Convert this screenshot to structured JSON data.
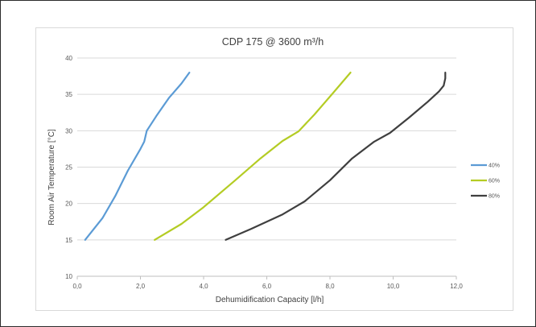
{
  "chart_data": {
    "type": "line",
    "title": "CDP 175 @ 3600 m³/h",
    "xlabel": "Dehumidification Capacity [l/h]",
    "ylabel": "Room Air Temperature [°C]",
    "xlim": [
      0,
      12
    ],
    "ylim": [
      10,
      40
    ],
    "x_ticks": [
      "0,0",
      "2,0",
      "4,0",
      "6,0",
      "8,0",
      "10,0",
      "12,0"
    ],
    "y_ticks": [
      "10",
      "15",
      "20",
      "25",
      "30",
      "35",
      "40"
    ],
    "grid": "horizontal",
    "legend_position": "right",
    "colors": {
      "40%": "#5b9bd5",
      "60%": "#b4cc24",
      "80%": "#3f3f3f"
    },
    "series": [
      {
        "name": "40%",
        "points": [
          [
            0.25,
            15
          ],
          [
            0.8,
            18
          ],
          [
            1.2,
            21
          ],
          [
            1.6,
            24.5
          ],
          [
            2.0,
            27.5
          ],
          [
            2.12,
            28.5
          ],
          [
            2.2,
            30
          ],
          [
            2.5,
            32
          ],
          [
            2.9,
            34.5
          ],
          [
            3.3,
            36.5
          ],
          [
            3.55,
            38
          ]
        ]
      },
      {
        "name": "60%",
        "points": [
          [
            2.45,
            15
          ],
          [
            3.3,
            17.2
          ],
          [
            4.0,
            19.5
          ],
          [
            5.0,
            23.2
          ],
          [
            5.8,
            26.2
          ],
          [
            6.5,
            28.6
          ],
          [
            7.0,
            29.9
          ],
          [
            7.5,
            32.2
          ],
          [
            8.1,
            35.2
          ],
          [
            8.65,
            38
          ]
        ]
      },
      {
        "name": "80%",
        "points": [
          [
            4.7,
            15
          ],
          [
            5.5,
            16.5
          ],
          [
            6.5,
            18.5
          ],
          [
            7.2,
            20.3
          ],
          [
            8.0,
            23.2
          ],
          [
            8.7,
            26.2
          ],
          [
            9.4,
            28.5
          ],
          [
            9.9,
            29.7
          ],
          [
            10.5,
            31.8
          ],
          [
            11.1,
            34.0
          ],
          [
            11.45,
            35.4
          ],
          [
            11.6,
            36.2
          ],
          [
            11.65,
            37.2
          ],
          [
            11.65,
            38
          ]
        ]
      }
    ]
  }
}
